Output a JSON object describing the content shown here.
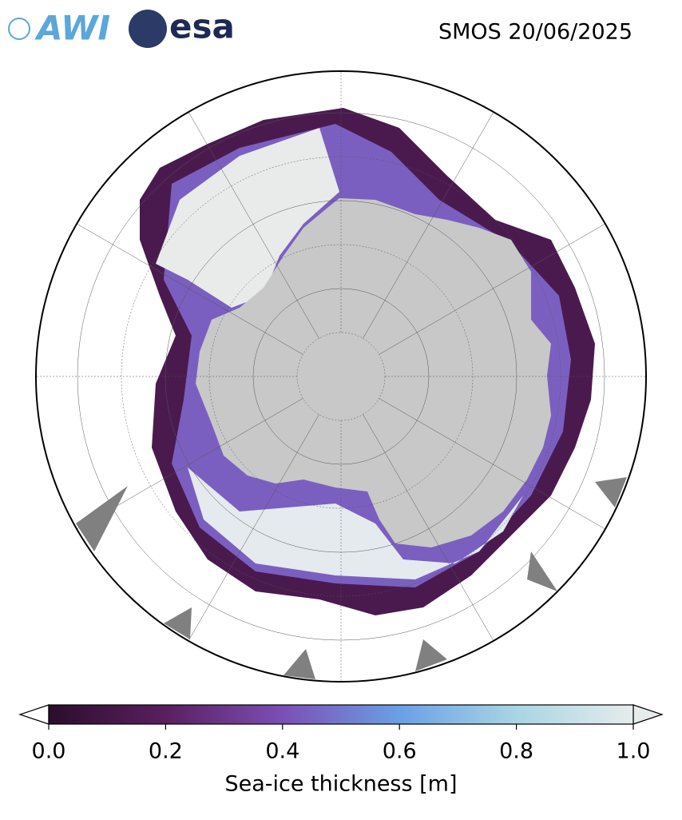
{
  "header": {
    "awi_logo": "AWI",
    "esa_logo": "esa",
    "title": "SMOS 20/06/2025"
  },
  "colorbar": {
    "label": "Sea-ice thickness [m]",
    "lim": [
      0,
      1
    ],
    "ticks": [
      {
        "value": 0,
        "label": "0.0"
      },
      0.2,
      0.4,
      0.6,
      0.8,
      {
        "value": 1,
        "label": "1.0"
      }
    ],
    "colors": [
      "#2b0e2c",
      "#5a1f5f",
      "#7b4fb5",
      "#6b9fe6",
      "#a9d5e4",
      "#e6ecec"
    ]
  }
}
